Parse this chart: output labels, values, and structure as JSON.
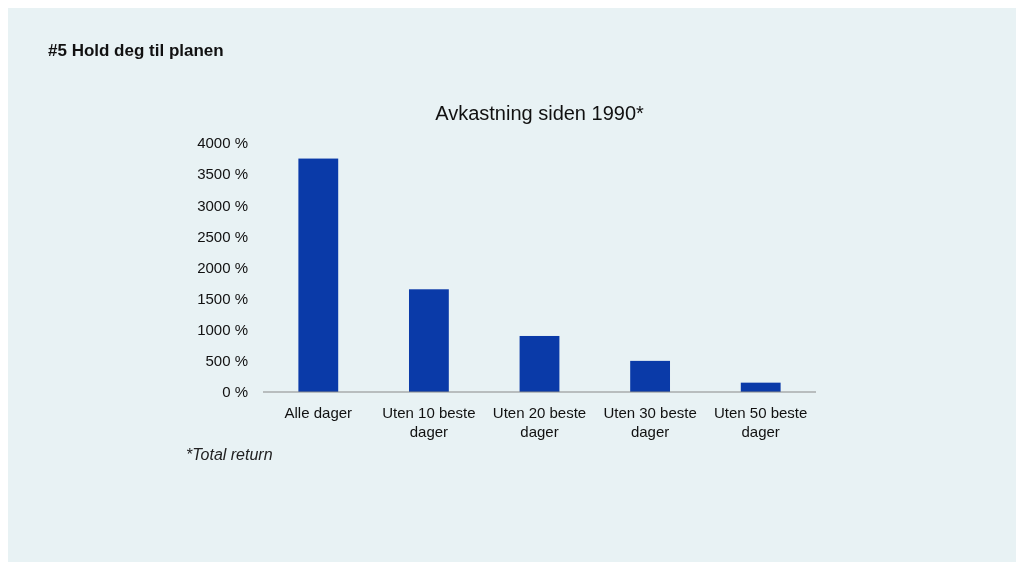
{
  "chart_data": {
    "type": "bar",
    "title": "#5 Hold deg til planen",
    "subtitle": "Avkastning siden 1990*",
    "categories": [
      "Alle dager",
      "Uten 10 beste dager",
      "Uten 20 beste dager",
      "Uten 30 beste dager",
      "Uten 50 beste dager"
    ],
    "values": [
      3750,
      1650,
      900,
      500,
      150
    ],
    "color": "#0a3aa8",
    "ylim": [
      0,
      4000
    ],
    "yticks": [
      {
        "value": 0,
        "label": "0 %"
      },
      {
        "value": 500,
        "label": "500 %"
      },
      {
        "value": 1000,
        "label": "1000 %"
      },
      {
        "value": 1500,
        "label": "1500 %"
      },
      {
        "value": 2000,
        "label": "2000 %"
      },
      {
        "value": 2500,
        "label": "2500 %"
      },
      {
        "value": 3000,
        "label": "3000 %"
      },
      {
        "value": 3500,
        "label": "3500 %"
      },
      {
        "value": 4000,
        "label": "4000 %"
      }
    ],
    "annotations": [
      "*Total return"
    ]
  }
}
